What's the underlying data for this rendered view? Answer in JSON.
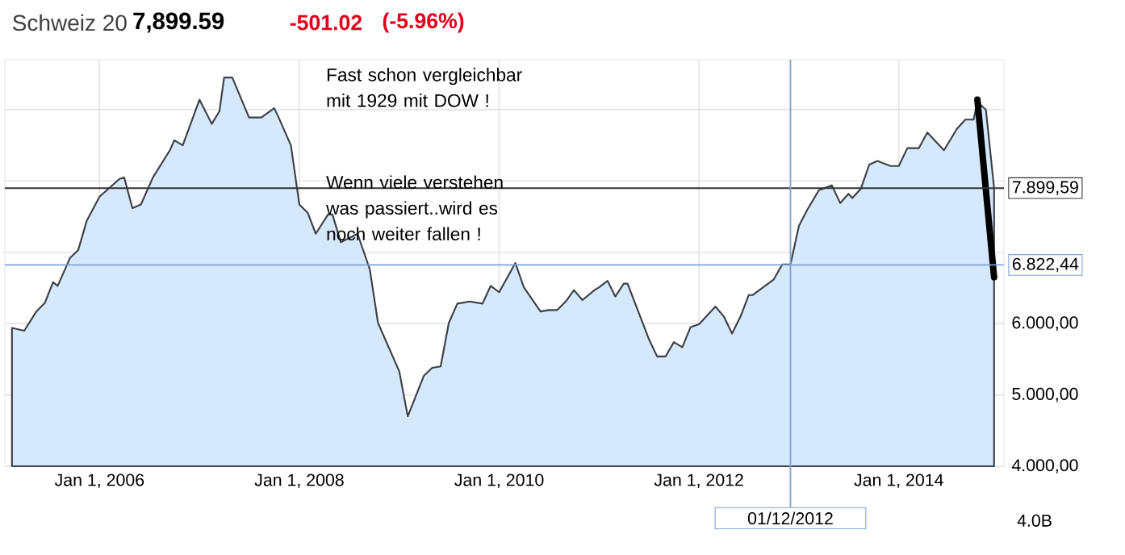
{
  "chart_data": {
    "type": "area",
    "title": "Schweiz 20",
    "annotations": [
      "7,899.59",
      "-501.02",
      "(-5.96%)",
      "Fast schon vergleichbar mit 1929 mit DOW !",
      "Wenn viele verstehen was passiert..wird es noch weiter fallen !",
      "4.0B"
    ],
    "series": [
      {
        "color": "#d6e8fb",
        "x": [
          "2005-02-15",
          "2005-04-01",
          "2005-05-15",
          "2005-06-15",
          "2005-07-15",
          "2005-08-01",
          "2005-09-15",
          "2005-10-15",
          "2005-11-15",
          "2006-01-01",
          "2006-03-15",
          "2006-04-01",
          "2006-05-01",
          "2006-06-01",
          "2006-07-15",
          "2006-09-15",
          "2006-10-01",
          "2006-11-01",
          "2007-01-01",
          "2007-02-15",
          "2007-03-15",
          "2007-04-01",
          "2007-05-01",
          "2007-07-01",
          "2007-08-15",
          "2007-10-01",
          "2007-10-15",
          "2007-12-01",
          "2008-01-01",
          "2008-02-01",
          "2008-03-01",
          "2008-04-15",
          "2008-05-01",
          "2008-06-01",
          "2008-08-01",
          "2008-09-15",
          "2008-10-15",
          "2009-01-01",
          "2009-02-01",
          "2009-04-01",
          "2009-05-01",
          "2009-06-01",
          "2009-07-01",
          "2009-08-01",
          "2009-09-15",
          "2009-11-01",
          "2009-12-01",
          "2010-01-01",
          "2010-03-01",
          "2010-04-01",
          "2010-06-01",
          "2010-07-01",
          "2010-08-01",
          "2010-09-01",
          "2010-10-01",
          "2010-11-01",
          "2010-12-15",
          "2011-01-01",
          "2011-02-01",
          "2011-03-01",
          "2011-04-01",
          "2011-04-15",
          "2011-07-01",
          "2011-08-01",
          "2011-09-01",
          "2011-10-01",
          "2011-11-01",
          "2011-12-01",
          "2012-01-01",
          "2012-03-01",
          "2012-04-01",
          "2012-05-01",
          "2012-06-01",
          "2012-07-01",
          "2012-07-15",
          "2012-10-01",
          "2012-11-01",
          "2012-12-01",
          "2013-01-01",
          "2013-02-01",
          "2013-03-15",
          "2013-05-01",
          "2013-06-01",
          "2013-07-01",
          "2013-07-15",
          "2013-08-15",
          "2013-09-15",
          "2013-10-15",
          "2013-12-01",
          "2014-01-01",
          "2014-02-01",
          "2014-03-15",
          "2014-04-15",
          "2014-06-15",
          "2014-08-01",
          "2014-09-01",
          "2014-10-01",
          "2014-10-15",
          "2014-11-15",
          "2014-12-15"
        ],
        "values": [
          5940,
          5900,
          6170,
          6290,
          6580,
          6530,
          6920,
          7030,
          7440,
          7780,
          8030,
          8050,
          7620,
          7670,
          8050,
          8430,
          8570,
          8500,
          9140,
          8800,
          8980,
          9450,
          9450,
          8890,
          8890,
          9020,
          8910,
          8500,
          7670,
          7550,
          7260,
          7530,
          7530,
          7140,
          7260,
          6760,
          6010,
          5330,
          4700,
          5270,
          5380,
          5400,
          6010,
          6280,
          6310,
          6280,
          6530,
          6440,
          6850,
          6510,
          6170,
          6190,
          6190,
          6310,
          6470,
          6330,
          6470,
          6510,
          6600,
          6380,
          6560,
          6560,
          5790,
          5540,
          5540,
          5740,
          5670,
          5950,
          5990,
          6240,
          6100,
          5860,
          6100,
          6400,
          6400,
          6620,
          6830,
          6830,
          7370,
          7600,
          7870,
          7940,
          7690,
          7820,
          7760,
          7890,
          8230,
          8280,
          8210,
          8210,
          8460,
          8460,
          8680,
          8430,
          8730,
          8860,
          8860,
          9110,
          9000,
          7900
        ]
      },
      {
        "type": "line",
        "color": "#000000",
        "x": [
          "2014-10-15",
          "2014-12-15"
        ],
        "values": [
          9140,
          6650
        ]
      }
    ],
    "xlim": [
      "2005-01-20",
      "2015-01-20"
    ],
    "xticks": [
      {
        "value": "2006-01-01",
        "label": "Jan 1, 2006"
      },
      {
        "value": "2008-01-01",
        "label": "Jan 1, 2008"
      },
      {
        "value": "2010-01-01",
        "label": "Jan 1, 2010"
      },
      {
        "value": "2012-01-01",
        "label": "Jan 1, 2012"
      },
      {
        "value": "2014-01-01",
        "label": "Jan 1, 2014"
      }
    ],
    "ylim": [
      4000,
      9700
    ],
    "yticks": [
      {
        "value": 4000,
        "label": "4.000,00"
      },
      {
        "value": 5000,
        "label": "5.000,00"
      },
      {
        "value": 6000,
        "label": "6.000,00"
      },
      {
        "value": 7000,
        "label": null
      },
      {
        "value": 8000,
        "label": null
      },
      {
        "value": 9000,
        "label": null
      }
    ],
    "ref_lines": [
      {
        "axis": "y",
        "value": 7899.59,
        "label": "7.899,59",
        "color": "#333333"
      },
      {
        "axis": "y",
        "value": 6822.44,
        "label": "6.822,44",
        "color": "#7fa5d0"
      },
      {
        "axis": "x",
        "value": "2012-12-01",
        "label": "01/12/2012",
        "color": "#7fa5d0"
      }
    ],
    "grid": true
  }
}
